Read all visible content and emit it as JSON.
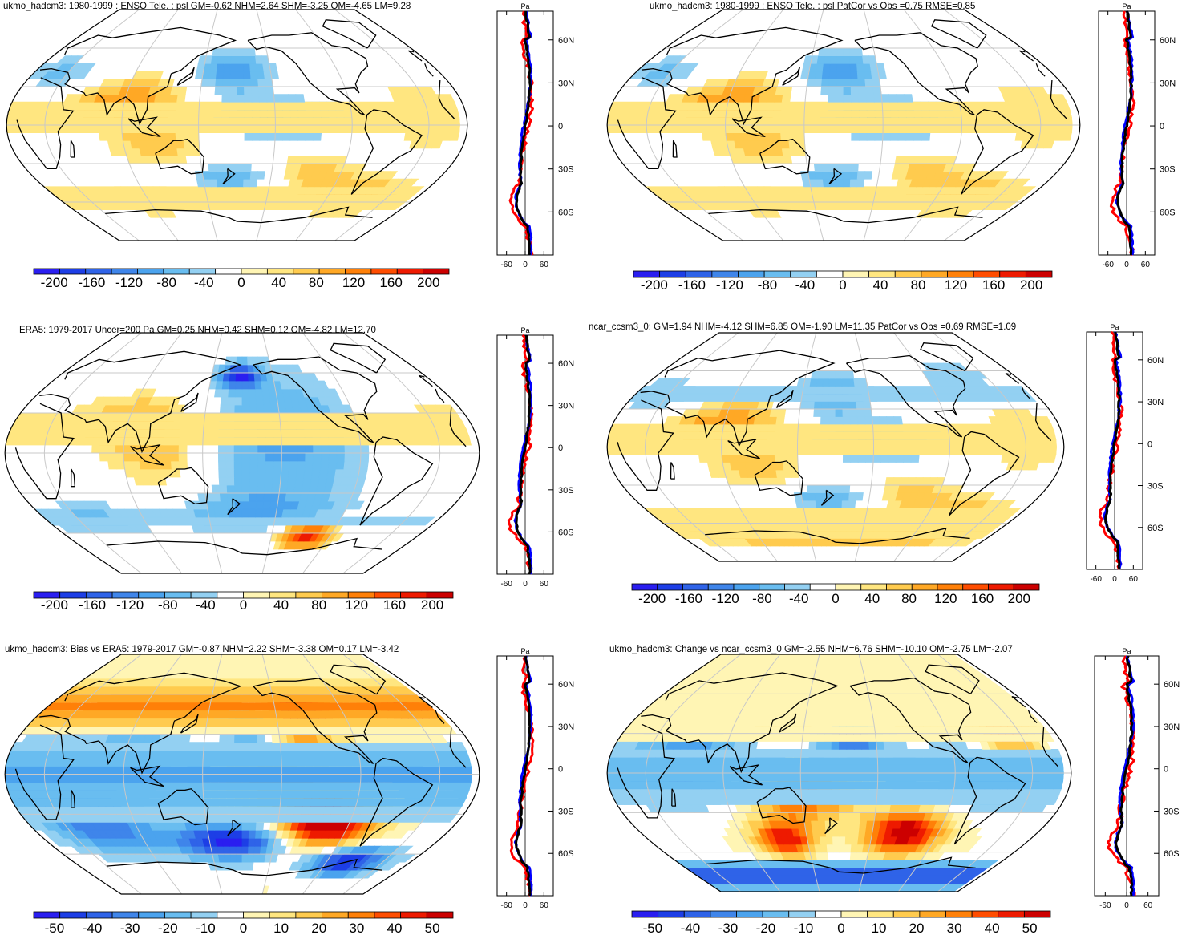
{
  "panels": [
    {
      "id": "p1",
      "title": "ukmo_hadcm3: 1980-1999 : ENSO Tele. : psl GM=-0.62 NHM=2.64 SHM=-3.25 OM=-4.65 LM=9.28",
      "palette": "scale",
      "type": "model",
      "seed": 1
    },
    {
      "id": "p2",
      "title": "ukmo_hadcm3: 1980-1999 : ENSO Tele. : psl PatCor vs Obs =0.75 RMSE=0.85",
      "palette": "scale",
      "type": "model",
      "seed": 2
    },
    {
      "id": "p3",
      "title": "ERA5: 1979-2017 Uncer=200 Pa GM=0.25 NHM=0.42 SHM=0.12 OM=-4.82 LM=12.70",
      "palette": "scale",
      "type": "obs",
      "seed": 3
    },
    {
      "id": "p4",
      "title": "ncar_ccsm3_0: GM=1.94 NHM=-4.12 SHM=6.85 OM=-1.90 LM=11.35 PatCor vs Obs =0.69 RMSE=1.09",
      "palette": "scale",
      "type": "model2",
      "seed": 4
    },
    {
      "id": "p5",
      "title": "ukmo_hadcm3: Bias vs ERA5: 1979-2017 GM=-0.87 NHM=2.22 SHM=-3.38 OM=0.17 LM=-3.42",
      "palette": "diff",
      "type": "bias",
      "seed": 5
    },
    {
      "id": "p6",
      "title": "ukmo_hadcm3: Change vs ncar_ccsm3_0 GM=-2.55 NHM=6.76 SHM=-10.10 OM=-2.75 LM=-2.07",
      "palette": "diff",
      "type": "change",
      "seed": 6
    }
  ],
  "colorbars": {
    "scale": {
      "labels": [
        "-200",
        "-160",
        "-120",
        "-80",
        "-40",
        "0",
        "40",
        "80",
        "120",
        "160",
        "200"
      ]
    },
    "diff": {
      "labels": [
        "-50",
        "-40",
        "-30",
        "-20",
        "-10",
        "0",
        "10",
        "20",
        "30",
        "40",
        "50"
      ]
    }
  },
  "profile": {
    "units": "Pa",
    "lat_labels": [
      "60N",
      "30N",
      "0",
      "30S",
      "60S"
    ],
    "x_labels": [
      "-60",
      "0",
      "60"
    ]
  },
  "colors": {
    "red_line": "#ff0000",
    "blue_line": "#0000ff",
    "black_line": "#000000",
    "palette_colors": [
      "#2a1ef0",
      "#1d3ee6",
      "#2f63e8",
      "#3f85ea",
      "#4ba3ee",
      "#69bdf0",
      "#93d0f2",
      "#ffffff",
      "#fff5b4",
      "#ffe680",
      "#ffcb4e",
      "#ffa825",
      "#ff8008",
      "#ff4d00",
      "#ee1a00",
      "#cc0000"
    ]
  }
}
